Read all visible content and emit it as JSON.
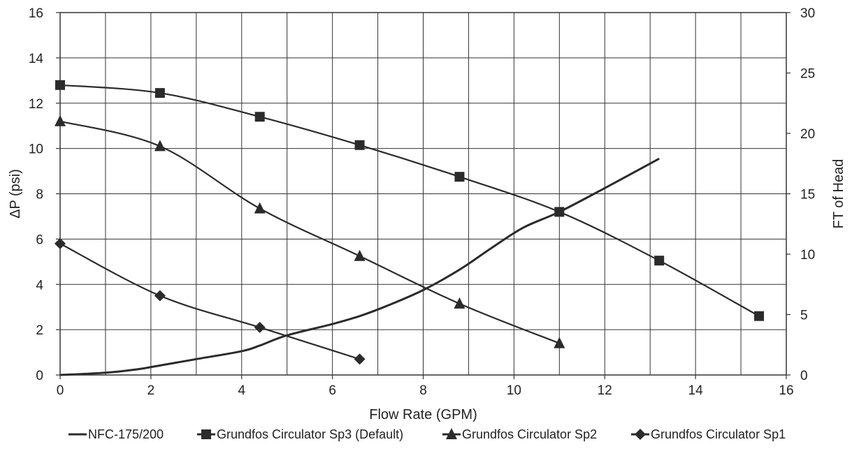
{
  "chart_data": {
    "type": "line",
    "xlabel": "Flow Rate (GPM)",
    "ylabel": "ΔP (psi)",
    "y2label": "FT of Head",
    "xlim": [
      0,
      16
    ],
    "ylim": [
      0,
      16
    ],
    "y2lim": [
      0,
      30
    ],
    "x_ticks": [
      "0",
      "2",
      "4",
      "6",
      "8",
      "10",
      "12",
      "14",
      "16"
    ],
    "y_ticks": [
      "0",
      "2",
      "4",
      "6",
      "8",
      "10",
      "12",
      "14",
      "16"
    ],
    "y2_ticks": [
      "0",
      "5",
      "10",
      "15",
      "20",
      "25",
      "30"
    ],
    "grid": true,
    "legend_position": "bottom",
    "colors": {
      "line": "#2b2b2b",
      "grid": "#333333",
      "text": "#222222"
    },
    "series": [
      {
        "name": "NFC-175/200",
        "marker": "none",
        "x": [
          0,
          1,
          1.7,
          2.2,
          3,
          4,
          4.4,
          5,
          6,
          6.6,
          7.2,
          8,
          8.8,
          9.5,
          10.2,
          11,
          12,
          13.2
        ],
        "y": [
          0,
          0.1,
          0.25,
          0.42,
          0.7,
          1.05,
          1.3,
          1.75,
          2.25,
          2.6,
          3.05,
          3.75,
          4.65,
          5.6,
          6.5,
          7.2,
          8.25,
          9.55
        ]
      },
      {
        "name": "Grundfos Circulator Sp3 (Default)",
        "marker": "square",
        "x": [
          0,
          2.2,
          4.4,
          6.6,
          8.8,
          11,
          13.2,
          15.4
        ],
        "y": [
          12.8,
          12.45,
          11.4,
          10.15,
          8.75,
          7.2,
          5.05,
          2.6
        ]
      },
      {
        "name": "Grundfos Circulator Sp2",
        "marker": "triangle",
        "x": [
          0,
          2.2,
          4.4,
          6.6,
          8.8,
          11
        ],
        "y": [
          11.2,
          10.1,
          7.35,
          5.25,
          3.15,
          1.4
        ]
      },
      {
        "name": "Grundfos Circulator Sp1",
        "marker": "diamond",
        "x": [
          0,
          2.2,
          4.4,
          6.6
        ],
        "y": [
          5.8,
          3.5,
          2.1,
          0.7
        ]
      }
    ]
  }
}
